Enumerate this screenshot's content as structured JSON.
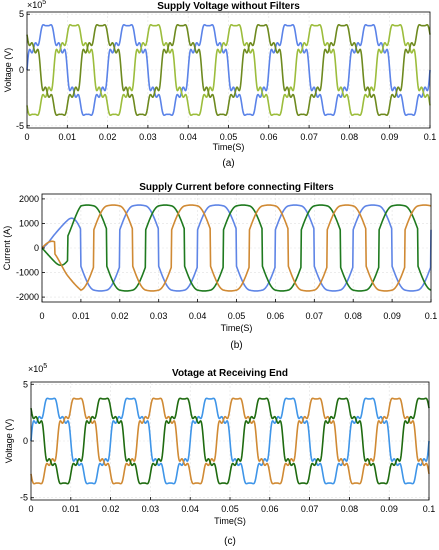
{
  "panels_order": [
    "a",
    "b",
    "c"
  ],
  "chart_data": [
    {
      "id": "a",
      "type": "line",
      "title": "Supply Voltage without Filters",
      "xlabel": "Time(S)",
      "ylabel": "Voltage (V)",
      "caption": "(a)",
      "y_multiplier_label": "×10^5",
      "y_multiplier_base": "×10",
      "y_multiplier_exp": "5",
      "xlim": [
        0,
        0.1
      ],
      "ylim": [
        -5.2,
        5.2
      ],
      "x_ticks": [
        0,
        0.01,
        0.02,
        0.03,
        0.04,
        0.05,
        0.06,
        0.07,
        0.08,
        0.09,
        0.1
      ],
      "x_tick_labels": [
        "0",
        "0.01",
        "0.02",
        "0.03",
        "0.04",
        "0.05",
        "0.06",
        "0.07",
        "0.08",
        "0.09",
        "0.1"
      ],
      "y_ticks": [
        -5,
        0,
        5
      ],
      "y_tick_labels": [
        "-5",
        "0",
        "5"
      ],
      "grid": true,
      "legend": "none",
      "waveform": {
        "frequency_hz": 50,
        "amplitude": 3.9,
        "phase_shifts_deg": [
          0,
          -120,
          120
        ],
        "harmonics": [
          [
            5,
            0.12
          ],
          [
            7,
            0.08
          ],
          [
            11,
            0.08
          ],
          [
            13,
            0.06
          ]
        ],
        "startup": "full"
      },
      "series": [
        {
          "color": "#5b83e8"
        },
        {
          "color": "#9cbd3c"
        },
        {
          "color": "#6e8a1f"
        }
      ]
    },
    {
      "id": "b",
      "type": "line",
      "title": "Supply Current before connecting Filters",
      "xlabel": "Time(S)",
      "ylabel": "Current (A)",
      "caption": "(b)",
      "xlim": [
        0,
        0.1
      ],
      "ylim": [
        -2200,
        2200
      ],
      "x_ticks": [
        0,
        0.01,
        0.02,
        0.03,
        0.04,
        0.05,
        0.06,
        0.07,
        0.08,
        0.09,
        0.1
      ],
      "x_tick_labels": [
        "0",
        "0.01",
        "0.02",
        "0.03",
        "0.04",
        "0.05",
        "0.06",
        "0.07",
        "0.08",
        "0.09",
        "0.1"
      ],
      "y_ticks": [
        -2000,
        -1000,
        0,
        1000,
        2000
      ],
      "y_tick_labels": [
        "-2000",
        "-1000",
        "0",
        "1000",
        "2000"
      ],
      "grid": true,
      "legend": "none",
      "waveform": {
        "frequency_hz": 50,
        "amplitude": 1750,
        "phase_shifts_deg": [
          0,
          -120,
          120
        ],
        "shape": "six-step",
        "startup": "ramp-0.01s"
      },
      "series": [
        {
          "color": "#5f85e6"
        },
        {
          "color": "#1f7a1f"
        },
        {
          "color": "#d08a34"
        }
      ]
    },
    {
      "id": "c",
      "type": "line",
      "title": "Votage at Receiving End",
      "xlabel": "Time(S)",
      "ylabel": "Voltage (V)",
      "caption": "(c)",
      "y_multiplier_label": "×10^5",
      "y_multiplier_base": "×10",
      "y_multiplier_exp": "5",
      "xlim": [
        0,
        0.1
      ],
      "ylim": [
        -5.2,
        5.2
      ],
      "x_ticks": [
        0,
        0.01,
        0.02,
        0.03,
        0.04,
        0.05,
        0.06,
        0.07,
        0.08,
        0.09,
        0.1
      ],
      "x_tick_labels": [
        "0",
        "0.01",
        "0.02",
        "0.03",
        "0.04",
        "0.05",
        "0.06",
        "0.07",
        "0.08",
        "0.09",
        "0.1"
      ],
      "y_ticks": [
        -5,
        0,
        5
      ],
      "y_tick_labels": [
        "-5",
        "0",
        "5"
      ],
      "grid": true,
      "legend": "none",
      "waveform": {
        "frequency_hz": 50,
        "amplitude": 3.6,
        "phase_shifts_deg": [
          0,
          -120,
          120
        ],
        "harmonics": [
          [
            5,
            0.14
          ],
          [
            7,
            0.09
          ],
          [
            11,
            0.07
          ],
          [
            13,
            0.05
          ]
        ],
        "startup": "full"
      },
      "series": [
        {
          "color": "#3f95e8"
        },
        {
          "color": "#d08a34"
        },
        {
          "color": "#1f6b10"
        }
      ]
    }
  ]
}
